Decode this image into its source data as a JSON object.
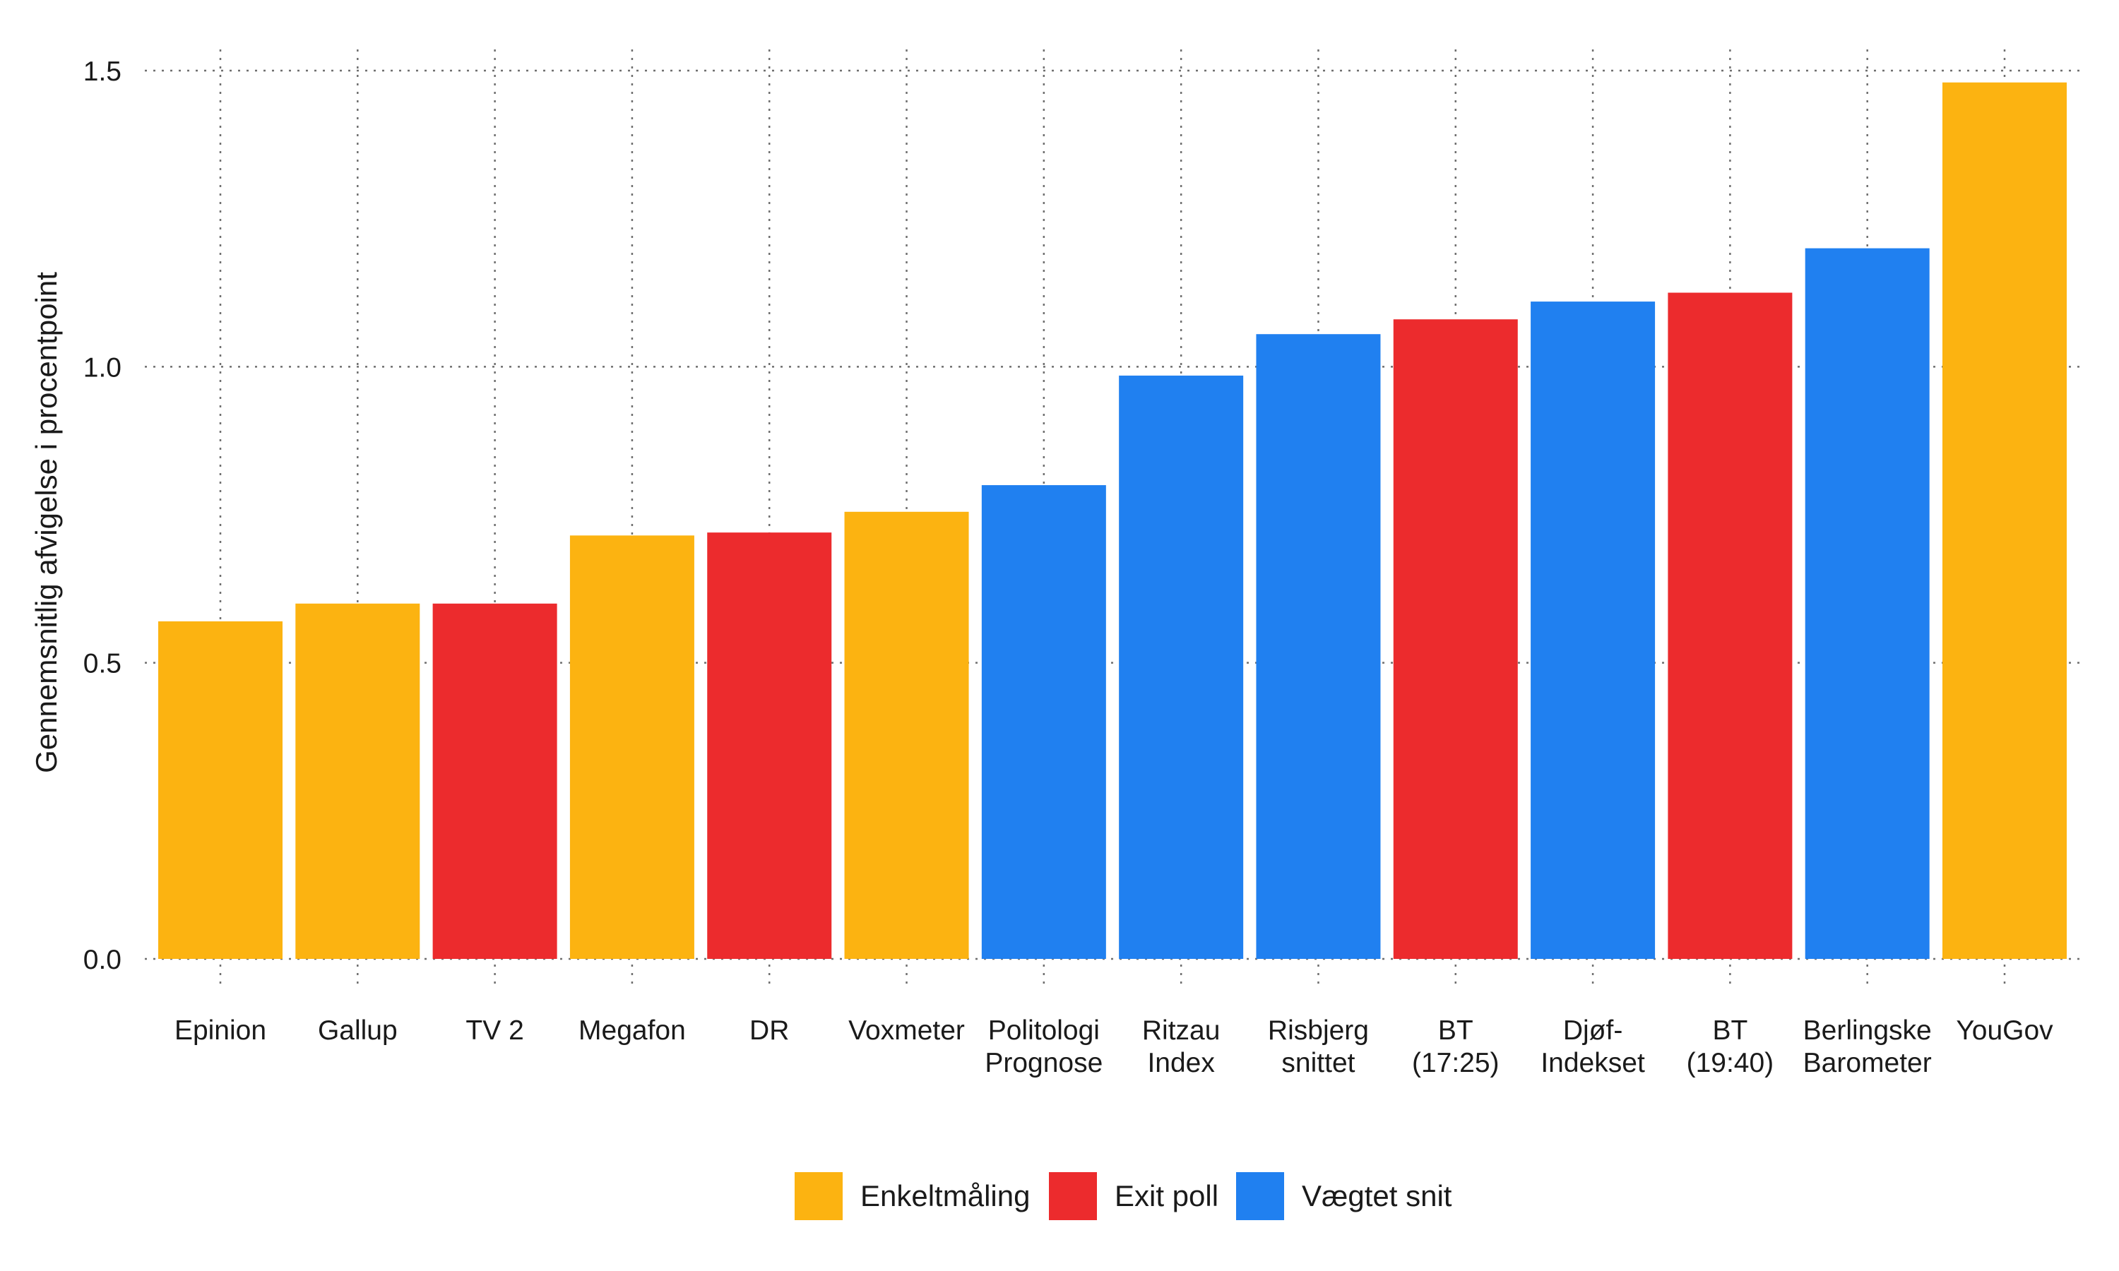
{
  "chart_data": {
    "type": "bar",
    "title": "",
    "xlabel": "",
    "ylabel": "Gennemsnitlig afvigelse i procentpoint",
    "ylim": [
      0,
      1.5
    ],
    "yticks": [
      "0.0",
      "0.5",
      "1.0",
      "1.5"
    ],
    "grid": true,
    "legend_position": "bottom",
    "categories": [
      [
        "Epinion"
      ],
      [
        "Gallup"
      ],
      [
        "TV 2"
      ],
      [
        "Megafon"
      ],
      [
        "DR"
      ],
      [
        "Voxmeter"
      ],
      [
        "Politologi",
        "Prognose"
      ],
      [
        "Ritzau",
        "Index"
      ],
      [
        "Risbjerg",
        "snittet"
      ],
      [
        "BT",
        "(17:25)"
      ],
      [
        "Djøf-",
        "Indekset"
      ],
      [
        "BT",
        "(19:40)"
      ],
      [
        "Berlingske",
        "Barometer"
      ],
      [
        "YouGov"
      ]
    ],
    "values": [
      0.57,
      0.6,
      0.6,
      0.715,
      0.72,
      0.755,
      0.8,
      0.985,
      1.055,
      1.08,
      1.11,
      1.125,
      1.2,
      1.48
    ],
    "groups": [
      "Enkeltmåling",
      "Enkeltmåling",
      "Exit poll",
      "Enkeltmåling",
      "Exit poll",
      "Enkeltmåling",
      "Vægtet snit",
      "Vægtet snit",
      "Vægtet snit",
      "Exit poll",
      "Vægtet snit",
      "Exit poll",
      "Vægtet snit",
      "Enkeltmåling"
    ],
    "legend": [
      {
        "name": "Enkeltmåling",
        "color": "#FCB311"
      },
      {
        "name": "Exit poll",
        "color": "#EC2B2D"
      },
      {
        "name": "Vægtet snit",
        "color": "#2080F0"
      }
    ]
  }
}
